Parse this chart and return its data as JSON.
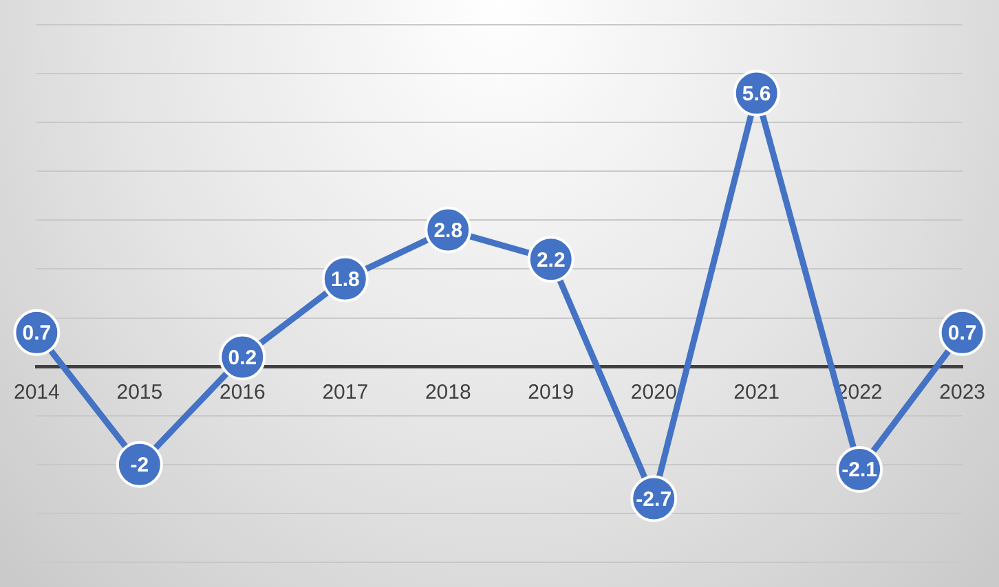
{
  "chart_data": {
    "type": "line",
    "categories": [
      "2014",
      "2015",
      "2016",
      "2017",
      "2018",
      "2019",
      "2020",
      "2021",
      "2022",
      "2023"
    ],
    "values": [
      0.7,
      -2,
      0.2,
      1.8,
      2.8,
      2.2,
      -2.7,
      5.6,
      -2.1,
      0.7
    ],
    "color": "#4472c4",
    "marker": "circle",
    "line_style": "solid",
    "data_labels": true,
    "grid": "y",
    "legend": false,
    "tick_labels": "x",
    "ylim": [
      -4,
      7
    ],
    "yticks": [
      {
        "value": -4,
        "label": null
      },
      {
        "value": -3,
        "label": null
      },
      {
        "value": -2,
        "label": null
      },
      {
        "value": -1,
        "label": null
      },
      {
        "value": 0,
        "label": null
      },
      {
        "value": 1,
        "label": null
      },
      {
        "value": 2,
        "label": null
      },
      {
        "value": 3,
        "label": null
      },
      {
        "value": 4,
        "label": null
      },
      {
        "value": 5,
        "label": null
      },
      {
        "value": 6,
        "label": null
      },
      {
        "value": 7,
        "label": null
      }
    ]
  }
}
